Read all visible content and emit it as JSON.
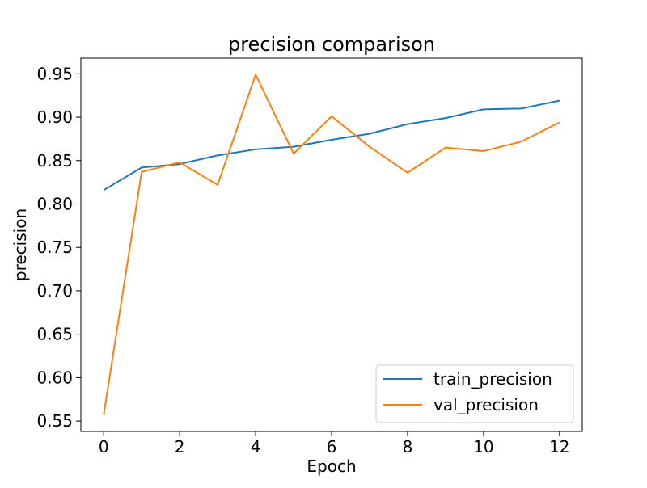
{
  "chart_data": {
    "type": "line",
    "title": "precision comparison",
    "xlabel": "Epoch",
    "ylabel": "precision",
    "xlim": [
      -0.6,
      12.6
    ],
    "ylim": [
      0.538,
      0.968
    ],
    "xticks": [
      0,
      2,
      4,
      6,
      8,
      10,
      12
    ],
    "xtick_labels": [
      "0",
      "2",
      "4",
      "6",
      "8",
      "10",
      "12"
    ],
    "yticks": [
      0.55,
      0.6,
      0.65,
      0.7,
      0.75,
      0.8,
      0.85,
      0.9,
      0.95
    ],
    "ytick_labels": [
      "0.55",
      "0.60",
      "0.65",
      "0.70",
      "0.75",
      "0.80",
      "0.85",
      "0.90",
      "0.95"
    ],
    "grid": false,
    "legend_position": "lower-right",
    "x": [
      0,
      1,
      2,
      3,
      4,
      5,
      6,
      7,
      8,
      9,
      10,
      11,
      12
    ],
    "series": [
      {
        "name": "train_precision",
        "color": "#1f77b4",
        "values": [
          0.816,
          0.842,
          0.846,
          0.856,
          0.863,
          0.866,
          0.874,
          0.881,
          0.892,
          0.899,
          0.909,
          0.91,
          0.919
        ]
      },
      {
        "name": "val_precision",
        "color": "#ff7f0e",
        "values": [
          0.557,
          0.837,
          0.848,
          0.822,
          0.949,
          0.858,
          0.901,
          0.866,
          0.836,
          0.865,
          0.861,
          0.872,
          0.894
        ]
      }
    ]
  }
}
